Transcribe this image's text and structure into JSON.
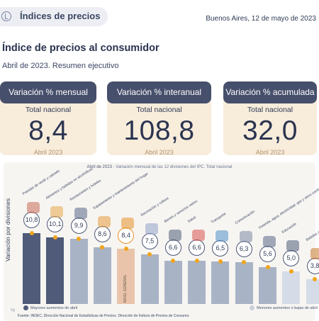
{
  "header": {
    "pill_title": "Índices de precios",
    "place_date": "Buenos Aires, 12 de mayo de 2023"
  },
  "document": {
    "title": "Índice de precios al consumidor",
    "subtitle": "Abril de 2023. Resumen ejecutivo"
  },
  "cards": [
    {
      "title": "Variación % mensual",
      "subtitle": "Total nacional",
      "value": "8,4",
      "period": "Abril 2023"
    },
    {
      "title": "Variación % interanual",
      "subtitle": "Total nacional",
      "value": "108,8",
      "period": "Abril 2023"
    },
    {
      "title": "Variación % acumulada",
      "subtitle": "Total nacional",
      "value": "32,0",
      "period": "Abril 2023"
    }
  ],
  "chart_data": {
    "type": "bar",
    "title_prefix": "Abril de 2023",
    "title_rest": " - Variación mensual de las 12 divisiones del IPC. Total nacional",
    "ylabel": "Variación por divisiones",
    "y_ticks": [
      "%"
    ],
    "categories": [
      "Prendas de vestir y calzado",
      "Alimentos y bebidas no alcohólicas",
      "Restaurantes y hoteles",
      "Equipamiento y mantenimiento del hogar",
      "Nivel general",
      "Recreación y cultura",
      "Bienes y servicios varios",
      "Salud",
      "Transporte",
      "Comunicación",
      "Vivienda, agua, electricidad, gas y otros combustibles",
      "Educación",
      "Bebidas alcohólicas y tabaco"
    ],
    "values": [
      10.8,
      10.1,
      9.9,
      8.6,
      8.4,
      7.5,
      6.6,
      6.6,
      6.5,
      6.3,
      5.6,
      5.0,
      3.8
    ],
    "value_labels": [
      "10,8",
      "10,1",
      "9,9",
      "8,6",
      "8,4",
      "7,5",
      "6,6",
      "6,6",
      "6,5",
      "6,3",
      "5,6",
      "5,0",
      "3,8"
    ],
    "nivel_general_label": "NIVEL GENERAL",
    "legend": [
      "Mayores aumentos de abril",
      "Menores aumentos o bajas de abril"
    ],
    "source": "Fuente: INDEC, Dirección Nacional de Estadísticas de Precios. Dirección de Índices de Precios de Consumo.",
    "colors": {
      "high": "#4f5b78",
      "mid": "#a9b3c6",
      "low": "#d6dce7",
      "general": "#e9c4aa",
      "dot": "#f0a51c"
    }
  }
}
